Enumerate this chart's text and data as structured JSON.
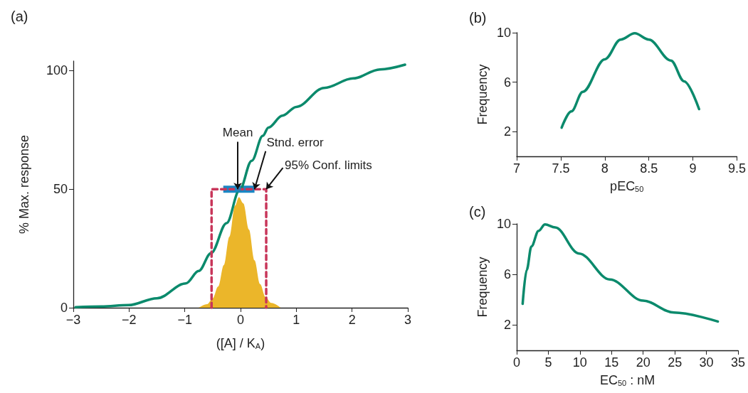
{
  "chart_data": [
    {
      "type": "line",
      "title": "(a)",
      "xlabel": "([A] / K$_{A}$)",
      "ylabel": "% Max. response",
      "xlim": [
        -3,
        3
      ],
      "xticks": [
        -3,
        -2,
        -1,
        0,
        1,
        2,
        3
      ],
      "ylim": [
        0,
        104
      ],
      "yticks": [
        0,
        50,
        100
      ],
      "grid": false,
      "marker": "none",
      "series": [
        {
          "color": "#0b8a6c",
          "x": [
            -2.96,
            -2.5,
            -2.01,
            -1.5,
            -0.98,
            -0.75,
            -0.53,
            -0.25,
            -0.02,
            0.2,
            0.4,
            0.5,
            0.75,
            1.0,
            1.5,
            2.02,
            2.5,
            2.95
          ],
          "values": [
            0.2,
            0.5,
            1.1,
            4.0,
            10.3,
            15.5,
            23,
            35.7,
            49.5,
            62,
            72.5,
            76,
            81,
            84.7,
            92.7,
            96.7,
            100.5,
            102.5
          ]
        },
        {
          "type": "area",
          "color": "#ebb62a",
          "x": [
            -0.75,
            -0.6,
            -0.5,
            -0.4,
            -0.3,
            -0.2,
            -0.1,
            -0.03,
            0.05,
            0.15,
            0.25,
            0.35,
            0.45,
            0.55,
            0.72
          ],
          "values": [
            0,
            1.5,
            4,
            9,
            18,
            30,
            43,
            46.6,
            44,
            33,
            20,
            10,
            4.5,
            2,
            0
          ]
        },
        {
          "color": "#c8365a",
          "line_style": "dashed",
          "x": [
            -0.52,
            -0.52,
            0.46,
            0.46
          ],
          "values": [
            0,
            50,
            50,
            0
          ]
        },
        {
          "type": "scatter",
          "color": "#1b86c4",
          "marker": "square",
          "x": [
            -0.05
          ],
          "values": [
            50
          ],
          "xerrors": [
            [
              -0.31,
              0.25
            ]
          ]
        }
      ],
      "annotations": [
        {
          "text": "Mean",
          "x": -0.05,
          "y": 50
        },
        {
          "text": "Stnd. error",
          "x": 0.25,
          "y": 50
        },
        {
          "text": "95% Conf. limits",
          "x": 0.46,
          "y": 50
        }
      ]
    },
    {
      "type": "line",
      "title": "(b)",
      "xlabel": "pEC$_{50}$",
      "ylabel": "Frequency",
      "xlim": [
        7,
        9.5
      ],
      "xticks": [
        7,
        7.5,
        8,
        8.5,
        9,
        9.5
      ],
      "ylim": [
        0,
        10
      ],
      "yticks": [
        2,
        6,
        10
      ],
      "grid": false,
      "marker": "none",
      "series": [
        {
          "color": "#0b8a6c",
          "x": [
            7.51,
            7.62,
            7.75,
            8.0,
            8.18,
            8.34,
            8.5,
            8.75,
            8.9,
            9.07
          ],
          "values": [
            2.32,
            3.63,
            5.22,
            7.85,
            9.44,
            9.95,
            9.44,
            7.75,
            6.07,
            3.82
          ]
        }
      ]
    },
    {
      "type": "line",
      "title": "(c)",
      "xlabel": "EC$_{50}$ : nM",
      "ylabel": "Frequency",
      "xlim": [
        0,
        35
      ],
      "xticks": [
        0,
        5,
        10,
        15,
        20,
        25,
        30,
        35
      ],
      "ylim": [
        0,
        10
      ],
      "yticks": [
        2,
        6,
        10
      ],
      "grid": false,
      "marker": "none",
      "series": [
        {
          "color": "#0b8a6c",
          "x": [
            0.94,
            1.58,
            2.33,
            3.45,
            4.47,
            6.08,
            9.84,
            14.72,
            19.98,
            24.86,
            31.8
          ],
          "values": [
            3.68,
            6.36,
            8.22,
            9.44,
            9.96,
            9.72,
            7.66,
            5.61,
            3.93,
            2.99,
            2.28
          ]
        }
      ]
    }
  ]
}
